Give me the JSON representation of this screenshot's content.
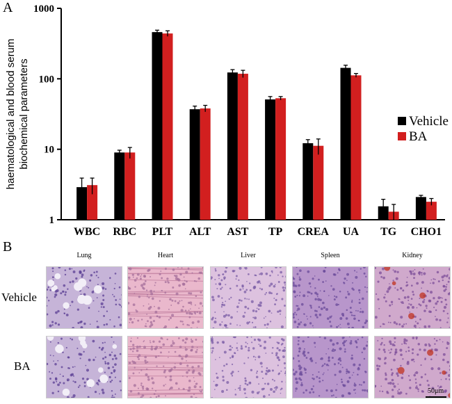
{
  "panel_a_letter": "A",
  "panel_b_letter": "B",
  "chart_data": {
    "type": "bar",
    "ylabel": "haematological and blood serum biochemical parameters",
    "ylabel_lines": [
      "haematological and blood serum",
      "biochemical parameters"
    ],
    "yscale": "log",
    "ylim": [
      1,
      1000
    ],
    "yticks": [
      "1",
      "10",
      "100",
      "1000"
    ],
    "categories": [
      "WBC",
      "RBC",
      "PLT",
      "ALT",
      "AST",
      "TP",
      "CREA",
      "UA",
      "TG",
      "CHO1"
    ],
    "legend_position": "right",
    "series": [
      {
        "name": "Vehicle",
        "color": "#000000",
        "values": [
          2.9,
          9.0,
          460,
          37,
          123,
          51,
          12.2,
          143,
          1.55,
          2.1
        ],
        "errors": [
          1.0,
          0.7,
          30,
          4,
          12,
          5,
          1.5,
          13,
          0.4,
          0.12
        ]
      },
      {
        "name": "BA",
        "color": "#d21f1f",
        "values": [
          3.1,
          9.0,
          440,
          38,
          118,
          53,
          11.2,
          112,
          1.3,
          1.8
        ],
        "errors": [
          0.8,
          1.6,
          40,
          4,
          14,
          3,
          2.8,
          7,
          0.35,
          0.2
        ]
      }
    ]
  },
  "panel_b": {
    "columns": [
      "Lung",
      "Heart",
      "Liver",
      "Spleen",
      "Kidney"
    ],
    "rows": [
      "Vehicle",
      "BA"
    ],
    "scale_bar": "50μm"
  }
}
